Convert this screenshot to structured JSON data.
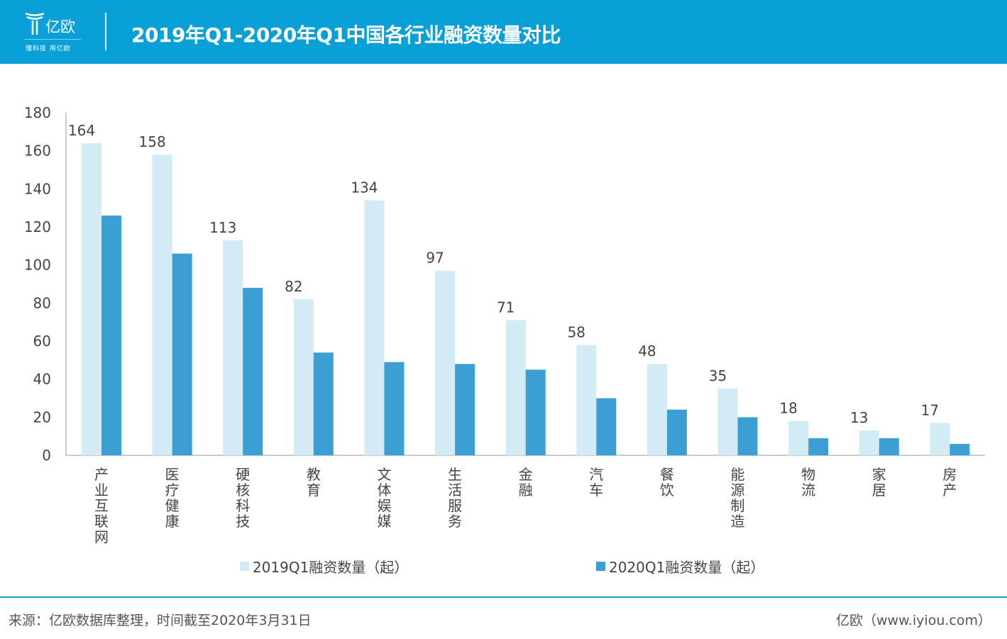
{
  "header": {
    "logo_name": "亿欧",
    "logo_slogan": "懂科技 用亿欧",
    "title": "2019年Q1-2020年Q1中国各行业融资数量对比",
    "color": "#08a0d7"
  },
  "chart_data": {
    "type": "bar",
    "categories": [
      "产业互联网",
      "医疗健康",
      "硬核科技",
      "教育",
      "文体娱媒",
      "生活服务",
      "金融",
      "汽车",
      "餐饮",
      "能源制造",
      "物流",
      "家居",
      "房产"
    ],
    "series": [
      {
        "name": "2019Q1融资数量（起）",
        "values": [
          164,
          158,
          113,
          82,
          134,
          97,
          71,
          58,
          48,
          35,
          18,
          13,
          17
        ],
        "color": "#d2ebf5",
        "labels_shown": true
      },
      {
        "name": "2020Q1融资数量（起）",
        "values": [
          126,
          106,
          88,
          54,
          49,
          48,
          45,
          30,
          24,
          20,
          9,
          9,
          6
        ],
        "color": "#3c9fd3",
        "labels_shown": false
      }
    ],
    "ylim": [
      0,
      180
    ],
    "yticks": [
      0,
      20,
      40,
      60,
      80,
      100,
      120,
      140,
      160,
      180
    ],
    "grid": false,
    "legend": "bottom"
  },
  "footer": {
    "source": "来源：亿欧数据库整理，时间截至2020年3月31日",
    "brand": "亿欧（www.iyiou.com）"
  }
}
